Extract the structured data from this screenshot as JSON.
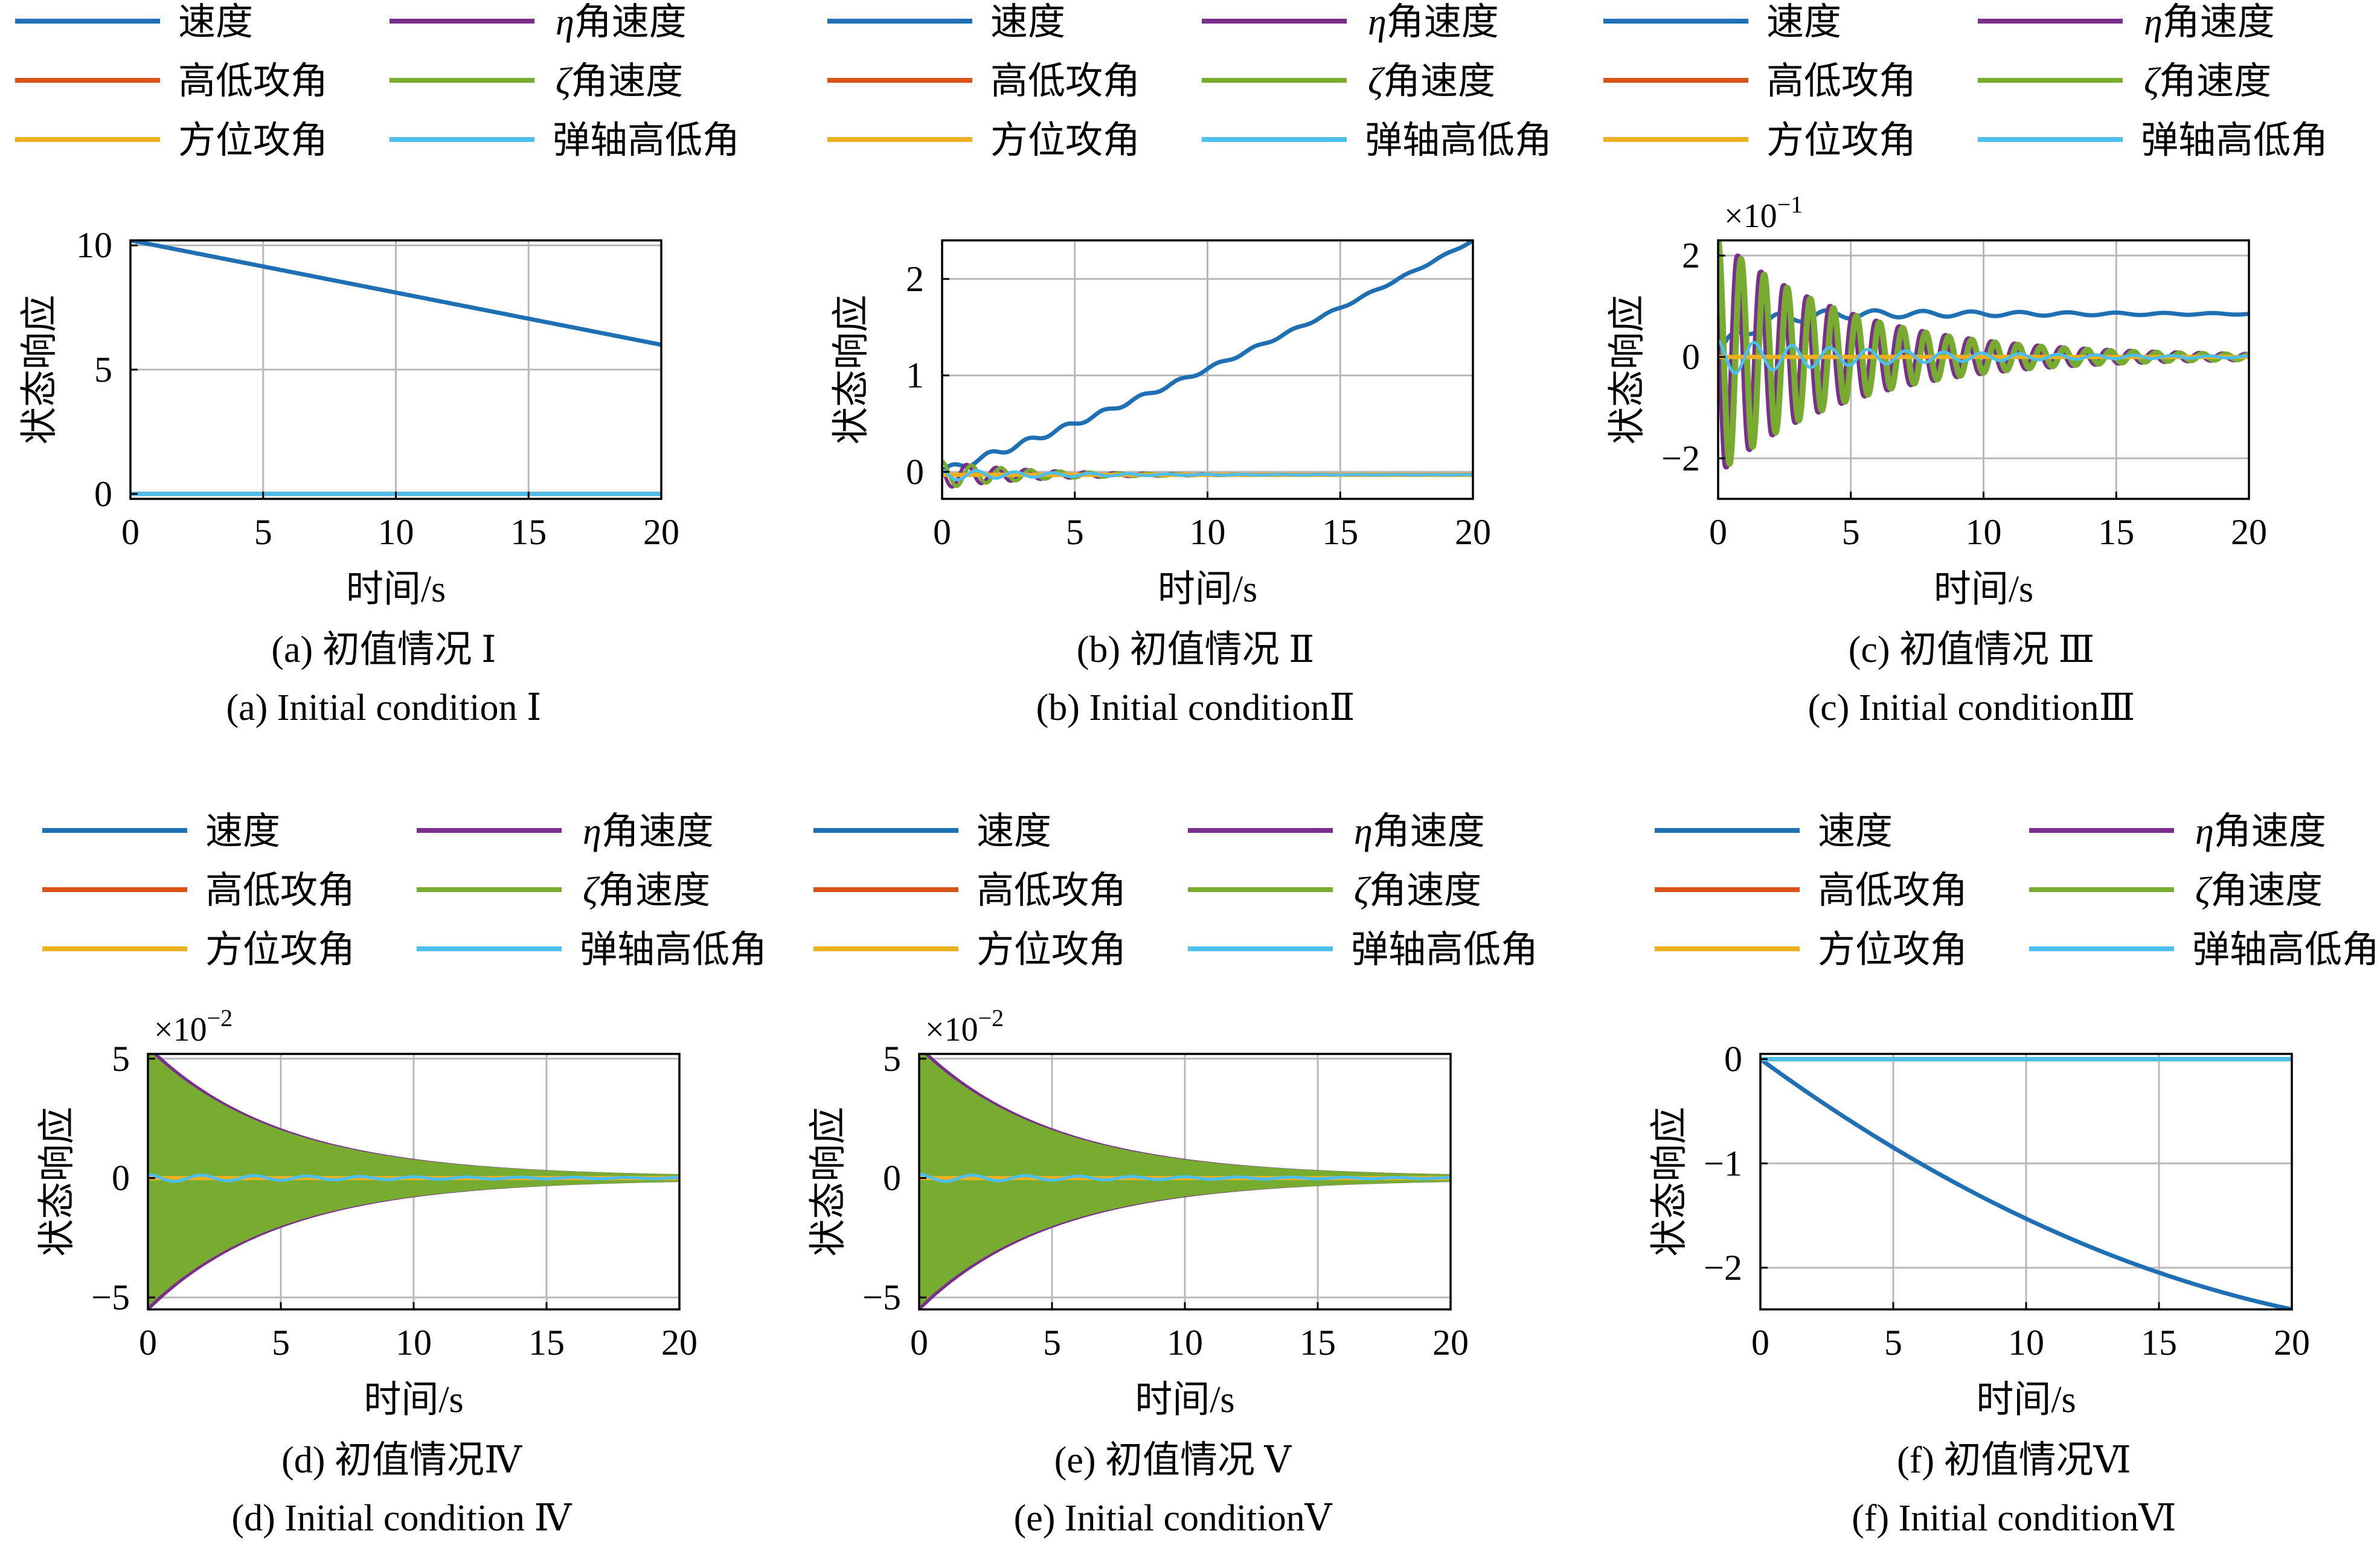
{
  "chart_data": [
    {
      "type": "line",
      "panel": "a",
      "caption_cn": "(a) 初值情况 Ⅰ",
      "caption_en": "(a) Initial condition  Ⅰ",
      "xlabel": "时间/s",
      "ylabel": "状态响应",
      "exponent": "",
      "xlim": [
        0,
        20
      ],
      "ylim": [
        -0.2,
        10.2
      ],
      "xticks": [
        0,
        5,
        10,
        15,
        20
      ],
      "yticks": [
        0,
        5,
        10
      ],
      "ytick_labels": [
        "0",
        "5",
        "10"
      ],
      "grid": true,
      "legend_position": "top",
      "series": [
        {
          "name": "速度",
          "color": "#1f6fb4",
          "shape": "linear",
          "y0": 10.2,
          "y1": 6.0
        },
        {
          "name": "η角速度",
          "color": "#7a2f8c",
          "shape": "flat",
          "y0": 0
        },
        {
          "name": "高低攻角",
          "color": "#d95319",
          "shape": "flat",
          "y0": 0
        },
        {
          "name": "ζ角速度",
          "color": "#77ac30",
          "shape": "flat",
          "y0": 0
        },
        {
          "name": "方位攻角",
          "color": "#edb120",
          "shape": "flat",
          "y0": 0
        },
        {
          "name": "弹轴高低角",
          "color": "#4dbeee",
          "shape": "flat",
          "y0": 0
        }
      ]
    },
    {
      "type": "line",
      "panel": "b",
      "caption_cn": "(b) 初值情况 Ⅱ",
      "caption_en": "(b) Initial conditionⅡ",
      "xlabel": "时间/s",
      "ylabel": "状态响应",
      "exponent": "",
      "xlim": [
        0,
        20
      ],
      "ylim": [
        -0.28,
        2.4
      ],
      "xticks": [
        0,
        5,
        10,
        15,
        20
      ],
      "yticks": [
        0,
        1,
        2
      ],
      "ytick_labels": [
        "0",
        "1",
        "2"
      ],
      "grid": true,
      "legend_position": "top",
      "series": [
        {
          "name": "速度",
          "color": "#1f6fb4",
          "shape": "rising",
          "y0": 0,
          "y1": 2.4,
          "wiggle": 0.04
        },
        {
          "name": "η角速度",
          "color": "#7a2f8c",
          "shape": "decay_osc",
          "amp": 0.14,
          "freq": 0.9,
          "decay": 0.3,
          "phase": 1.0,
          "offset": -0.03,
          "width": 6
        },
        {
          "name": "高低攻角",
          "color": "#d95319",
          "shape": "flat",
          "y0": -0.03
        },
        {
          "name": "ζ角速度",
          "color": "#77ac30",
          "shape": "decay_osc",
          "amp": 0.14,
          "freq": 0.9,
          "decay": 0.3,
          "phase": 0,
          "offset": -0.03,
          "width": 6
        },
        {
          "name": "方位攻角",
          "color": "#edb120",
          "shape": "flat",
          "y0": -0.03
        },
        {
          "name": "弹轴高低角",
          "color": "#4dbeee",
          "shape": "decay_osc",
          "amp": 0.06,
          "freq": 0.7,
          "decay": 0.25,
          "phase": 0.5,
          "offset": -0.03,
          "width": 5
        }
      ]
    },
    {
      "type": "line",
      "panel": "c",
      "caption_cn": "(c) 初值情况 Ⅲ",
      "caption_en": "(c) Initial conditionⅢ",
      "xlabel": "时间/s",
      "ylabel": "状态响应",
      "exponent": "×10",
      "exponent_power": "−1",
      "xlim": [
        0,
        20
      ],
      "ylim": [
        -2.8,
        2.3
      ],
      "xticks": [
        0,
        5,
        10,
        15,
        20
      ],
      "yticks": [
        -2,
        0,
        2
      ],
      "ytick_labels": [
        "−2",
        "0",
        "2"
      ],
      "grid": true,
      "legend_position": "top",
      "series": [
        {
          "name": "速度",
          "color": "#1f6fb4",
          "shape": "settle",
          "y0": 0,
          "y1": 0.85,
          "amp": 0.15,
          "freq": 0.55,
          "decay": 0.12
        },
        {
          "name": "η角速度",
          "color": "#7a2f8c",
          "shape": "decay_osc",
          "amp": 2.3,
          "freq": 1.15,
          "decay": 0.2,
          "phase": 0.9,
          "offset": 0,
          "width": 10
        },
        {
          "name": "高低攻角",
          "color": "#d95319",
          "shape": "flat",
          "y0": 0
        },
        {
          "name": "ζ角速度",
          "color": "#77ac30",
          "shape": "decay_osc",
          "amp": 2.3,
          "freq": 1.15,
          "decay": 0.2,
          "phase": 0,
          "offset": 0,
          "width": 10
        },
        {
          "name": "方位攻角",
          "color": "#edb120",
          "shape": "flat",
          "y0": 0
        },
        {
          "name": "弹轴高低角",
          "color": "#4dbeee",
          "shape": "decay_osc",
          "amp": 0.35,
          "freq": 0.7,
          "decay": 0.15,
          "phase": 0.3,
          "offset": 0,
          "width": 5
        }
      ]
    },
    {
      "type": "line",
      "panel": "d",
      "caption_cn": "(d) 初值情况Ⅳ",
      "caption_en": "(d) Initial condition Ⅳ",
      "xlabel": "时间/s",
      "ylabel": "状态响应",
      "exponent": "×10",
      "exponent_power": "−2",
      "xlim": [
        0,
        20
      ],
      "ylim": [
        -5.5,
        5.2
      ],
      "xticks": [
        0,
        5,
        10,
        15,
        20
      ],
      "yticks": [
        -5,
        0,
        5
      ],
      "ytick_labels": [
        "−5",
        "0",
        "5"
      ],
      "grid": true,
      "legend_position": "top",
      "series": [
        {
          "name": "速度",
          "color": "#1f6fb4",
          "shape": "flat",
          "y0": 0
        },
        {
          "name": "η角速度",
          "color": "#7a2f8c",
          "shape": "envelope",
          "amp": 5.5,
          "decay": 0.2
        },
        {
          "name": "高低攻角",
          "color": "#d95319",
          "shape": "flat",
          "y0": 0
        },
        {
          "name": "ζ角速度",
          "color": "#77ac30",
          "shape": "envelope",
          "amp": 5.3,
          "decay": 0.2
        },
        {
          "name": "方位攻角",
          "color": "#edb120",
          "shape": "flat",
          "y0": 0
        },
        {
          "name": "弹轴高低角",
          "color": "#4dbeee",
          "shape": "decay_osc",
          "amp": 0.15,
          "freq": 0.5,
          "decay": 0.1,
          "phase": 0,
          "offset": 0,
          "width": 5
        }
      ]
    },
    {
      "type": "line",
      "panel": "e",
      "caption_cn": "(e) 初值情况 Ⅴ",
      "caption_en": "(e) Initial conditionⅤ",
      "xlabel": "时间/s",
      "ylabel": "状态响应",
      "exponent": "×10",
      "exponent_power": "−2",
      "xlim": [
        0,
        20
      ],
      "ylim": [
        -5.5,
        5.2
      ],
      "xticks": [
        0,
        5,
        10,
        15,
        20
      ],
      "yticks": [
        -5,
        0,
        5
      ],
      "ytick_labels": [
        "−5",
        "0",
        "5"
      ],
      "grid": true,
      "legend_position": "top",
      "series": [
        {
          "name": "速度",
          "color": "#1f6fb4",
          "shape": "flat",
          "y0": 0
        },
        {
          "name": "η角速度",
          "color": "#7a2f8c",
          "shape": "envelope",
          "amp": 5.5,
          "decay": 0.2
        },
        {
          "name": "高低攻角",
          "color": "#d95319",
          "shape": "flat",
          "y0": 0
        },
        {
          "name": "ζ角速度",
          "color": "#77ac30",
          "shape": "envelope",
          "amp": 5.3,
          "decay": 0.2
        },
        {
          "name": "方位攻角",
          "color": "#edb120",
          "shape": "flat",
          "y0": 0
        },
        {
          "name": "弹轴高低角",
          "color": "#4dbeee",
          "shape": "decay_osc",
          "amp": 0.15,
          "freq": 0.5,
          "decay": 0.1,
          "phase": 0,
          "offset": 0,
          "width": 5
        }
      ]
    },
    {
      "type": "line",
      "panel": "f",
      "caption_cn": "(f) 初值情况Ⅵ",
      "caption_en": "(f) Initial conditionⅥ",
      "xlabel": "时间/s",
      "ylabel": "状态响应",
      "exponent": "",
      "xlim": [
        0,
        20
      ],
      "ylim": [
        -2.4,
        0.05
      ],
      "xticks": [
        0,
        5,
        10,
        15,
        20
      ],
      "yticks": [
        -2,
        -1,
        0
      ],
      "ytick_labels": [
        "−2",
        "−1",
        "0"
      ],
      "grid": true,
      "legend_position": "top",
      "series": [
        {
          "name": "速度",
          "color": "#1f6fb4",
          "shape": "concave",
          "y0": 0,
          "y1": -2.4
        },
        {
          "name": "η角速度",
          "color": "#7a2f8c",
          "shape": "flat",
          "y0": 0
        },
        {
          "name": "高低攻角",
          "color": "#d95319",
          "shape": "flat",
          "y0": 0
        },
        {
          "name": "ζ角速度",
          "color": "#77ac30",
          "shape": "flat",
          "y0": 0
        },
        {
          "name": "方位攻角",
          "color": "#edb120",
          "shape": "flat",
          "y0": 0
        },
        {
          "name": "弹轴高低角",
          "color": "#4dbeee",
          "shape": "flat",
          "y0": 0
        }
      ]
    }
  ]
}
